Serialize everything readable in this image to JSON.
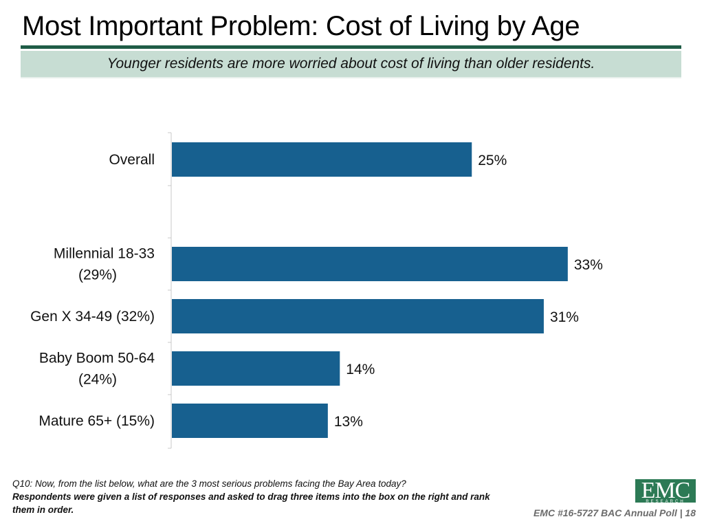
{
  "title": "Most Important Problem: Cost of Living by Age",
  "subtitle": "Younger residents are more worried about cost of living than older residents.",
  "colors": {
    "bar": "#17608f",
    "title_rule": "#1f5c46",
    "subtitle_band": "#c7ddd3",
    "logo": "#2c7a55"
  },
  "chart_data": {
    "type": "bar",
    "orientation": "horizontal",
    "title": "",
    "xlabel": "",
    "ylabel": "",
    "xlim": [
      0,
      35
    ],
    "grid": false,
    "legend": "none",
    "categories": [
      [
        "Overall"
      ],
      [
        "Millennial 18-33",
        "(29%)"
      ],
      [
        "Gen X 34-49 (32%)"
      ],
      [
        "Baby Boom 50-64",
        "(24%)"
      ],
      [
        "Mature 65+ (15%)"
      ]
    ],
    "values": [
      25,
      33,
      31,
      14,
      13
    ],
    "value_labels": [
      "25%",
      "33%",
      "31%",
      "14%",
      "13%"
    ]
  },
  "footnote": {
    "question": "Q10: Now, from the list below, what are the 3 most serious problems facing the Bay Area today?",
    "respondents": "Respondents were given a list of responses and asked to drag three items into the box on the right and rank them in order."
  },
  "logo": {
    "text": "EMC",
    "subtext": "RESEARCH"
  },
  "page_ref": "EMC #16-5727 BAC Annual Poll | 18"
}
